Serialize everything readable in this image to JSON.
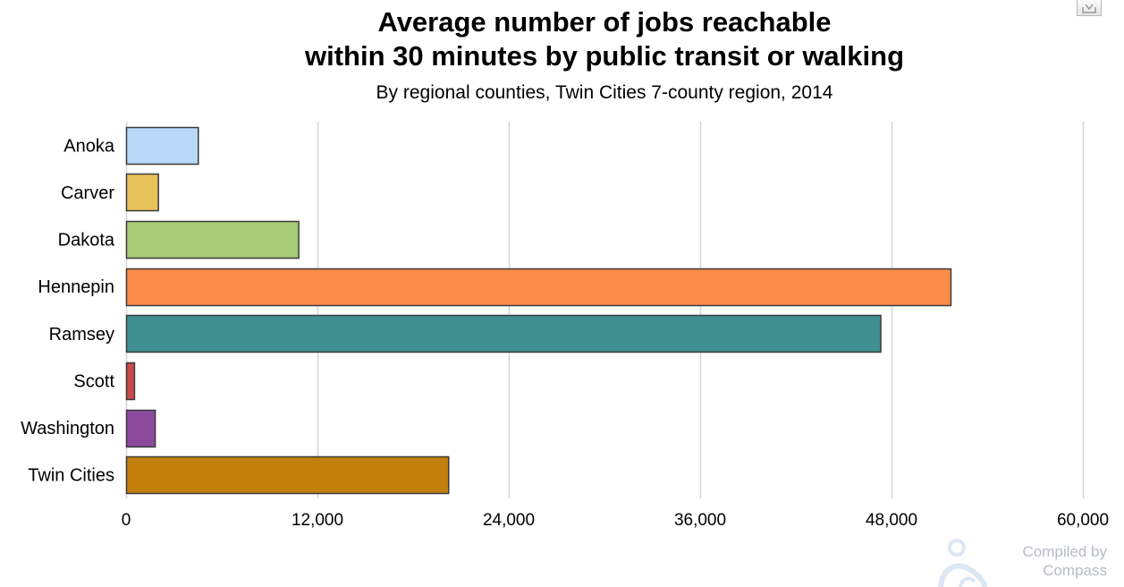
{
  "chart_data": {
    "type": "bar",
    "orientation": "horizontal",
    "title": "Average number of jobs reachable within 30 minutes by public transit or walking",
    "title_lines": [
      "Average number of jobs reachable",
      "within 30 minutes by public transit or walking"
    ],
    "subtitle": "By regional counties, Twin Cities 7-county region, 2014",
    "xlabel": "",
    "ylabel": "",
    "categories": [
      "Anoka",
      "Carver",
      "Dakota",
      "Hennepin",
      "Ramsey",
      "Scott",
      "Washington",
      "Twin Cities"
    ],
    "values": [
      4500,
      2000,
      10800,
      51700,
      47300,
      500,
      1800,
      20200
    ],
    "colors": [
      "#b9d8f7",
      "#e8c25a",
      "#a9cc78",
      "#fd8b4a",
      "#3f8f91",
      "#c9494d",
      "#8d4a9d",
      "#c27f0c"
    ],
    "xlim": [
      0,
      60000
    ],
    "ticks": [
      0,
      12000,
      24000,
      36000,
      48000,
      60000
    ],
    "tick_labels": [
      "0",
      "12,000",
      "24,000",
      "36,000",
      "48,000",
      "60,000"
    ],
    "grid": true,
    "legend": "none"
  },
  "credit": {
    "text_line1": "Compiled by",
    "text_line2": "Compass"
  },
  "icons": {
    "download": "download-icon",
    "credit_logo": "compass-logo-icon"
  }
}
